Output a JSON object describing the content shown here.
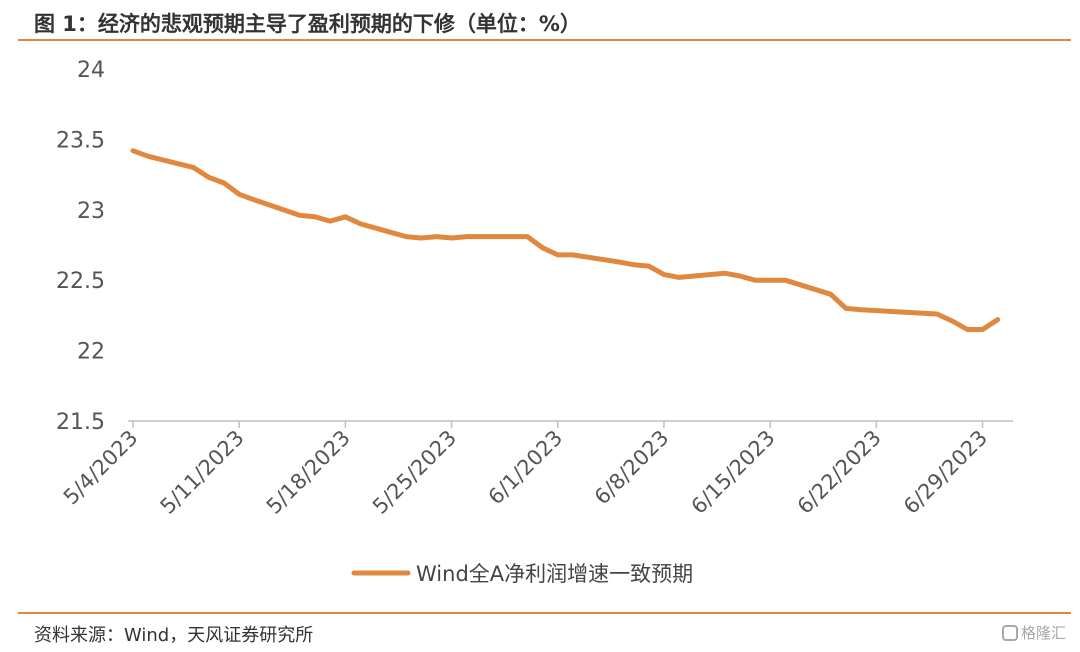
{
  "header": {
    "title": "图 1：经济的悲观预期主导了盈利预期的下修（单位：%）"
  },
  "footer": {
    "source": "资料来源：Wind，天风证券研究所",
    "watermark": "格隆汇"
  },
  "colors": {
    "accent": "#E0883F",
    "line": "#E0883F",
    "axis": "#bfbfbf"
  },
  "chart_data": {
    "type": "line",
    "title": "",
    "xlabel": "",
    "ylabel": "",
    "ylim": [
      21.5,
      24
    ],
    "y_ticks": [
      "21.5",
      "22",
      "22.5",
      "23",
      "23.5",
      "24"
    ],
    "x_ticks": [
      "5/4/2023",
      "5/11/2023",
      "5/18/2023",
      "5/25/2023",
      "6/1/2023",
      "6/8/2023",
      "6/15/2023",
      "6/22/2023",
      "6/29/2023"
    ],
    "grid": false,
    "legend": "bottom-center",
    "series": [
      {
        "name": "Wind全A净利润增速一致预期",
        "points": [
          [
            "2023-05-04",
            23.42
          ],
          [
            "2023-05-05",
            23.38
          ],
          [
            "2023-05-08",
            23.3
          ],
          [
            "2023-05-09",
            23.23
          ],
          [
            "2023-05-10",
            23.19
          ],
          [
            "2023-05-11",
            23.11
          ],
          [
            "2023-05-12",
            23.07
          ],
          [
            "2023-05-15",
            22.96
          ],
          [
            "2023-05-16",
            22.95
          ],
          [
            "2023-05-17",
            22.92
          ],
          [
            "2023-05-18",
            22.95
          ],
          [
            "2023-05-19",
            22.9
          ],
          [
            "2023-05-22",
            22.81
          ],
          [
            "2023-05-23",
            22.8
          ],
          [
            "2023-05-24",
            22.81
          ],
          [
            "2023-05-25",
            22.8
          ],
          [
            "2023-05-26",
            22.81
          ],
          [
            "2023-05-29",
            22.81
          ],
          [
            "2023-05-30",
            22.81
          ],
          [
            "2023-05-31",
            22.73
          ],
          [
            "2023-06-01",
            22.68
          ],
          [
            "2023-06-02",
            22.68
          ],
          [
            "2023-06-05",
            22.63
          ],
          [
            "2023-06-06",
            22.61
          ],
          [
            "2023-06-07",
            22.6
          ],
          [
            "2023-06-08",
            22.54
          ],
          [
            "2023-06-09",
            22.52
          ],
          [
            "2023-06-12",
            22.55
          ],
          [
            "2023-06-13",
            22.53
          ],
          [
            "2023-06-14",
            22.5
          ],
          [
            "2023-06-16",
            22.5
          ],
          [
            "2023-06-19",
            22.4
          ],
          [
            "2023-06-20",
            22.3
          ],
          [
            "2023-06-21",
            22.29
          ],
          [
            "2023-06-26",
            22.26
          ],
          [
            "2023-06-27",
            22.21
          ],
          [
            "2023-06-28",
            22.15
          ],
          [
            "2023-06-29",
            22.15
          ],
          [
            "2023-06-30",
            22.22
          ]
        ]
      }
    ]
  }
}
